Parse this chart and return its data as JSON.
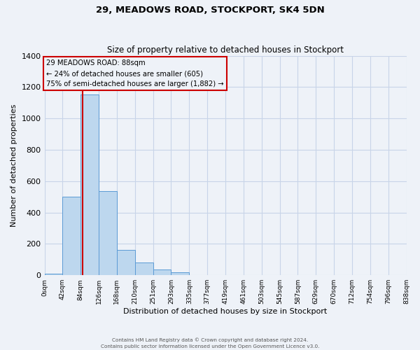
{
  "title": "29, MEADOWS ROAD, STOCKPORT, SK4 5DN",
  "subtitle": "Size of property relative to detached houses in Stockport",
  "xlabel": "Distribution of detached houses by size in Stockport",
  "ylabel": "Number of detached properties",
  "bin_labels": [
    "0sqm",
    "42sqm",
    "84sqm",
    "126sqm",
    "168sqm",
    "210sqm",
    "251sqm",
    "293sqm",
    "335sqm",
    "377sqm",
    "419sqm",
    "461sqm",
    "503sqm",
    "545sqm",
    "587sqm",
    "629sqm",
    "670sqm",
    "712sqm",
    "754sqm",
    "796sqm",
    "838sqm"
  ],
  "bar_heights": [
    10,
    500,
    1155,
    535,
    160,
    82,
    35,
    18,
    0,
    0,
    0,
    0,
    0,
    0,
    0,
    0,
    0,
    0,
    0,
    0
  ],
  "bar_color": "#bdd7ee",
  "bar_edge_color": "#5b9bd5",
  "background_color": "#eef2f8",
  "grid_color": "#c8d4e8",
  "annotation_line1": "29 MEADOWS ROAD: 88sqm",
  "annotation_line2": "← 24% of detached houses are smaller (605)",
  "annotation_line3": "75% of semi-detached houses are larger (1,882) →",
  "annotation_box_edge": "#cc0000",
  "property_line_color": "#cc0000",
  "property_line_x": 88,
  "ylim": [
    0,
    1400
  ],
  "yticks": [
    0,
    200,
    400,
    600,
    800,
    1000,
    1200,
    1400
  ],
  "footer_line1": "Contains HM Land Registry data © Crown copyright and database right 2024.",
  "footer_line2": "Contains public sector information licensed under the Open Government Licence v3.0.",
  "bin_width": 42,
  "num_bins": 20
}
